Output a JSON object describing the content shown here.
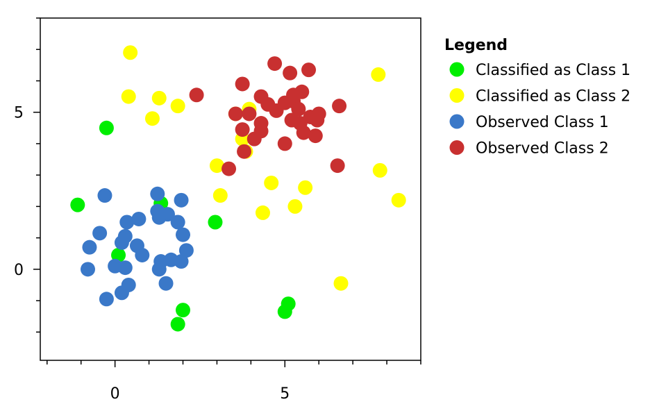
{
  "chart_data": {
    "type": "scatter",
    "title": "",
    "xlabel": "",
    "ylabel": "",
    "xlim": [
      -2.2,
      9
    ],
    "ylim": [
      -2.9,
      8
    ],
    "xticks": [
      0,
      5
    ],
    "yticks": [
      0,
      5
    ],
    "xticks_major": [
      0,
      5
    ],
    "yticks_major": [
      0,
      5
    ],
    "grid": false,
    "legend": {
      "title": "Legend",
      "placement": "right-outside"
    },
    "series": [
      {
        "name": "Classified as Class 1",
        "color": "#00ee00",
        "points": [
          [
            -1.1,
            2.05
          ],
          [
            -0.25,
            4.5
          ],
          [
            2.95,
            1.5
          ],
          [
            1.35,
            2.1
          ],
          [
            0.1,
            0.45
          ],
          [
            2.0,
            -1.3
          ],
          [
            1.85,
            -1.75
          ],
          [
            5.1,
            -1.1
          ],
          [
            5.0,
            -1.35
          ]
        ]
      },
      {
        "name": "Classified as Class 2",
        "color": "#ffff00",
        "points": [
          [
            0.45,
            6.9
          ],
          [
            0.4,
            5.5
          ],
          [
            1.3,
            5.45
          ],
          [
            1.1,
            4.8
          ],
          [
            1.85,
            5.2
          ],
          [
            3.0,
            3.3
          ],
          [
            3.1,
            2.35
          ],
          [
            3.55,
            4.95
          ],
          [
            3.75,
            4.15
          ],
          [
            3.85,
            3.75
          ],
          [
            3.95,
            5.1
          ],
          [
            4.35,
            1.8
          ],
          [
            4.6,
            2.75
          ],
          [
            5.3,
            2.0
          ],
          [
            5.6,
            2.6
          ],
          [
            6.65,
            -0.45
          ],
          [
            7.75,
            6.2
          ],
          [
            7.8,
            3.15
          ],
          [
            8.35,
            2.2
          ]
        ]
      },
      {
        "name": "Observed Class 1",
        "color": "#3a78c8",
        "points": [
          [
            -0.3,
            2.35
          ],
          [
            -0.45,
            1.15
          ],
          [
            -0.75,
            0.7
          ],
          [
            -0.8,
            0.0
          ],
          [
            0.0,
            0.1
          ],
          [
            -0.25,
            -0.95
          ],
          [
            0.2,
            0.85
          ],
          [
            0.3,
            1.05
          ],
          [
            0.35,
            1.5
          ],
          [
            0.3,
            0.05
          ],
          [
            0.2,
            -0.75
          ],
          [
            0.4,
            -0.5
          ],
          [
            0.7,
            1.6
          ],
          [
            0.65,
            0.75
          ],
          [
            0.8,
            0.45
          ],
          [
            1.25,
            2.4
          ],
          [
            1.25,
            1.85
          ],
          [
            1.3,
            1.65
          ],
          [
            1.55,
            1.75
          ],
          [
            1.3,
            0.0
          ],
          [
            1.35,
            0.25
          ],
          [
            1.5,
            -0.45
          ],
          [
            1.65,
            0.3
          ],
          [
            1.85,
            1.5
          ],
          [
            1.95,
            2.2
          ],
          [
            2.0,
            1.1
          ],
          [
            2.1,
            0.6
          ],
          [
            1.95,
            0.25
          ]
        ]
      },
      {
        "name": "Observed Class 2",
        "color": "#c83030",
        "points": [
          [
            2.4,
            5.55
          ],
          [
            3.35,
            3.2
          ],
          [
            3.55,
            4.95
          ],
          [
            3.75,
            5.9
          ],
          [
            3.75,
            4.45
          ],
          [
            3.8,
            3.75
          ],
          [
            3.95,
            4.95
          ],
          [
            4.1,
            4.15
          ],
          [
            4.3,
            4.4
          ],
          [
            4.3,
            4.65
          ],
          [
            4.3,
            5.5
          ],
          [
            4.5,
            5.25
          ],
          [
            4.7,
            6.55
          ],
          [
            4.75,
            5.05
          ],
          [
            5.0,
            5.3
          ],
          [
            5.0,
            4.0
          ],
          [
            5.15,
            6.25
          ],
          [
            5.2,
            4.75
          ],
          [
            5.25,
            5.55
          ],
          [
            5.25,
            5.35
          ],
          [
            5.4,
            5.1
          ],
          [
            5.45,
            4.65
          ],
          [
            5.5,
            5.65
          ],
          [
            5.55,
            4.35
          ],
          [
            5.7,
            6.35
          ],
          [
            5.75,
            4.85
          ],
          [
            5.9,
            4.25
          ],
          [
            5.95,
            4.75
          ],
          [
            6.0,
            4.95
          ],
          [
            6.55,
            3.3
          ],
          [
            6.6,
            5.2
          ]
        ]
      }
    ]
  }
}
